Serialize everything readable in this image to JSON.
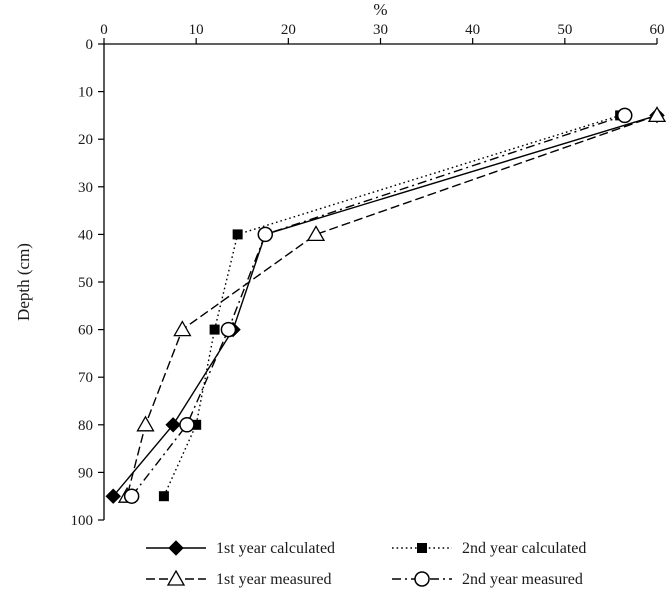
{
  "chart_data": {
    "type": "line",
    "xlabel": "%",
    "ylabel": "Depth (cm)",
    "xlim": [
      0,
      60
    ],
    "ylim": [
      0,
      100
    ],
    "y_inverted": true,
    "x_axis_position": "top",
    "x_ticks": [
      0,
      10,
      20,
      30,
      40,
      50,
      60
    ],
    "y_ticks": [
      0,
      10,
      20,
      30,
      40,
      50,
      60,
      70,
      80,
      90,
      100
    ],
    "grid": false,
    "legend_position": "bottom",
    "series": [
      {
        "name": "1st year calculated",
        "marker": "filled-diamond",
        "line": "solid",
        "color": "#000000",
        "points": [
          {
            "x": 60,
            "y": 15
          },
          {
            "x": 17.5,
            "y": 40
          },
          {
            "x": 14,
            "y": 60
          },
          {
            "x": 7.5,
            "y": 80
          },
          {
            "x": 1,
            "y": 95
          }
        ]
      },
      {
        "name": "2nd year calculated",
        "marker": "filled-square",
        "line": "dotted",
        "color": "#000000",
        "points": [
          {
            "x": 56,
            "y": 15
          },
          {
            "x": 14.5,
            "y": 40
          },
          {
            "x": 12,
            "y": 60
          },
          {
            "x": 10,
            "y": 80
          },
          {
            "x": 6.5,
            "y": 95
          }
        ]
      },
      {
        "name": "1st year measured",
        "marker": "open-triangle",
        "line": "dashed",
        "color": "#000000",
        "points": [
          {
            "x": 60,
            "y": 15
          },
          {
            "x": 23,
            "y": 40
          },
          {
            "x": 8.5,
            "y": 60
          },
          {
            "x": 4.5,
            "y": 80
          },
          {
            "x": 2.5,
            "y": 95
          }
        ]
      },
      {
        "name": "2nd year measured",
        "marker": "open-circle",
        "line": "dash-dot",
        "color": "#000000",
        "points": [
          {
            "x": 56.5,
            "y": 15
          },
          {
            "x": 17.5,
            "y": 40
          },
          {
            "x": 13.5,
            "y": 60
          },
          {
            "x": 9,
            "y": 80
          },
          {
            "x": 3,
            "y": 95
          }
        ]
      }
    ]
  }
}
